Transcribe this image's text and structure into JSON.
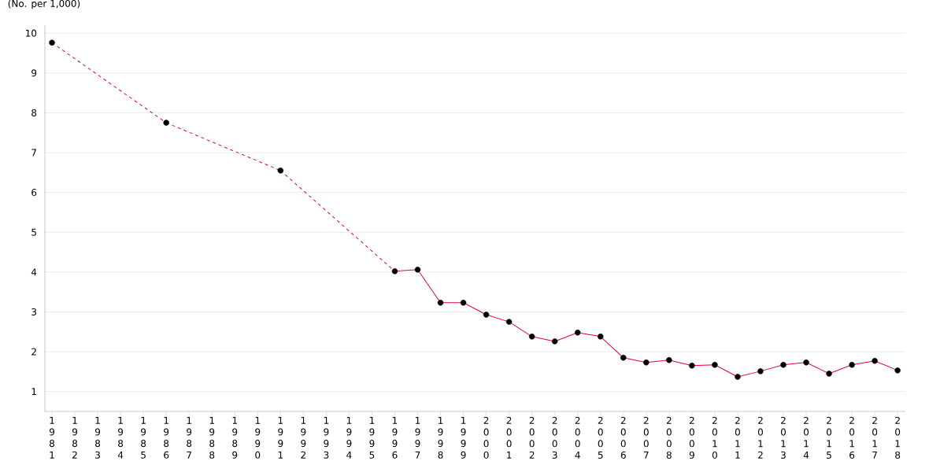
{
  "chart_data": {
    "type": "line",
    "ylabel": "(No. per 1,000)",
    "categories": [
      "1981",
      "1982",
      "1983",
      "1984",
      "1985",
      "1986",
      "1987",
      "1988",
      "1989",
      "1990",
      "1991",
      "1992",
      "1993",
      "1994",
      "1995",
      "1996",
      "1997",
      "1998",
      "1999",
      "2000",
      "2001",
      "2002",
      "2003",
      "2004",
      "2005",
      "2006",
      "2007",
      "2008",
      "2009",
      "2010",
      "2011",
      "2012",
      "2013",
      "2014",
      "2015",
      "2016",
      "2017",
      "2018"
    ],
    "series": [
      {
        "color": "#e8003c",
        "values": [
          9.76,
          null,
          null,
          null,
          null,
          7.75,
          null,
          null,
          null,
          null,
          6.55,
          null,
          null,
          null,
          null,
          4.02,
          4.06,
          3.23,
          3.23,
          2.93,
          2.75,
          2.38,
          2.26,
          2.48,
          2.38,
          1.85,
          1.73,
          1.79,
          1.65,
          1.67,
          1.37,
          1.51,
          1.67,
          1.73,
          1.45,
          1.67,
          1.77,
          1.53
        ]
      }
    ],
    "ylim": [
      0.5,
      10.2
    ],
    "yticks": [
      1,
      2,
      3,
      4,
      5,
      6,
      7,
      8,
      9,
      10
    ],
    "grid": "y",
    "marker": "circle",
    "line_style": "solid"
  }
}
